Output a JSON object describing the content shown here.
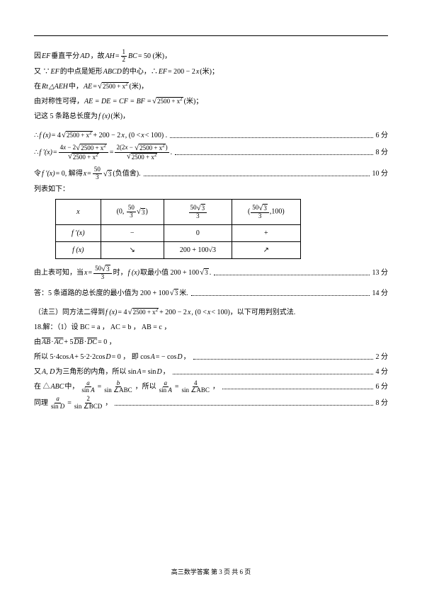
{
  "lines": {
    "l1_a": "因 ",
    "l1_ef": "EF",
    "l1_b": " 垂直平分 ",
    "l1_ad": "AD",
    "l1_c": "，故 ",
    "l1_ah": "AH",
    "l1_eq1": " = ",
    "l1_frac_n": "1",
    "l1_frac_d": "2",
    "l1_bc": "BC",
    "l1_d": " = 50 (米)，",
    "l2_a": "又 ∵ ",
    "l2_ef": "EF",
    "l2_b": " 的中点是矩形 ",
    "l2_abcd": "ABCD",
    "l2_c": " 的中心，∴ ",
    "l2_ef2": "EF",
    "l2_d": " = 200 − 2",
    "l2_x": "x",
    "l2_e": " (米)；",
    "l3_a": "在 ",
    "l3_rt": "Rt",
    "l3_tri": "△AEH",
    "l3_b": " 中，  ",
    "l3_ae": "AE",
    "l3_eq": " = ",
    "l3_sqrt": "2500 + x",
    "l3_c": " (米)，",
    "l4_a": "由对称性可得，",
    "l4_eq": "AE = DE = CF = BF = ",
    "l4_sqrt": "2500 + x",
    "l4_b": " (米)；",
    "l5_a": "记这 5 条路总长度为 ",
    "l5_fx": "f (x)",
    "l5_b": " (米)，",
    "l6_a": "∴ ",
    "l6_fx": "f (x)",
    "l6_b": " = 4",
    "l6_sqrt": "2500 + x",
    "l6_c": " + 200 − 2",
    "l6_x": "x",
    "l6_d": ", (0 < ",
    "l6_x2": "x",
    "l6_e": " < 100) .",
    "s6": "6 分",
    "l7_a": "∴ ",
    "l7_fpx": "f ′(x)",
    "l7_eq": " = ",
    "l7_f1n_a": "4",
    "l7_f1n_x": "x",
    "l7_f1n_b": " − 2",
    "l7_sqrt1": "2500 + x",
    "l7_f1d": "2500 + x",
    "l7_eq2": " = ",
    "l7_f2n_a": "2(2",
    "l7_f2n_x": "x",
    "l7_f2n_b": " − ",
    "l7_sqrt2": "2500 + x",
    "l7_f2n_c": ")",
    "l7_f2d": "2500 + x",
    "l7_period": " .",
    "s8": "8 分",
    "l8_a": "令 ",
    "l8_fpx": "f ′(x)",
    "l8_b": " = 0, 解得 ",
    "l8_x": "x",
    "l8_c": " = ",
    "l8_fn": "50",
    "l8_fd": "3",
    "l8_sqrt3": "3",
    "l8_d": " (负值舍).",
    "s10": "10 分",
    "l9": "列表如下：",
    "tab": {
      "r1": [
        "x",
        [
          "(0, ",
          "50",
          "3",
          "3",
          ")"
        ],
        [
          "",
          "50",
          "3",
          "3",
          ""
        ],
        [
          "(",
          "50",
          "3",
          "3",
          ",100)"
        ]
      ],
      "r2": [
        "f ′(x)",
        "−",
        "0",
        "+"
      ],
      "r3": [
        "f (x)",
        "↘",
        "200 + 100√3",
        "↗"
      ]
    },
    "l10_a": "由上表可知，当 ",
    "l10_x": "x",
    "l10_b": " = ",
    "l10_fn": "50",
    "l10_fd": "3",
    "l10_sqrt": "3",
    "l10_c": " 时， ",
    "l10_fx": "f (x)",
    "l10_d": " 取最小值 200 + 100",
    "l10_sqrt2": "3",
    "l10_e": " .",
    "s13": "13 分",
    "l11_a": "答：5 条道路的总长度的最小值为 200 + 100",
    "l11_sqrt": "3",
    "l11_b": " 米.",
    "s14": "14 分",
    "l12_a": "（法三）同方法二得到 ",
    "l12_fx": "f (x)",
    "l12_b": " = 4",
    "l12_sqrt": "2500 + x",
    "l12_c": " + 200 − 2",
    "l12_x": "x",
    "l12_d": ", (0 < ",
    "l12_x2": "x",
    "l12_e": " < 100)，以下可用判别式法.",
    "l13": "18.解：（1）设 BC = a ， AC = b ， AB = c ，",
    "l14_a": "由 ",
    "l14_v1": "AB",
    "l14_dot": " · ",
    "l14_v2": "AC",
    "l14_b": " + 5",
    "l14_v3": "DB",
    "l14_dot2": " · ",
    "l14_v4": "DC",
    "l14_c": " = 0 ，",
    "l15_a": "所以 5·4cos",
    "l15_A": "A",
    "l15_b": " + 5·2·2cos",
    "l15_D": "D",
    "l15_c": " = 0 ， 即 cos",
    "l15_A2": "A",
    "l15_d": " = − cos",
    "l15_D2": "D",
    "l15_e": " ，",
    "s2": "2 分",
    "l16_a": "又 ",
    "l16_AD": "A, D",
    "l16_b": " 为三角形的内角，所以 sin ",
    "l16_A": "A",
    "l16_c": " = sin ",
    "l16_D": "D",
    "l16_d": " ，",
    "s4": "4 分",
    "l17_a": "在 △",
    "l17_ABC": "ABC",
    "l17_b": " 中，",
    "l17_f1n": "a",
    "l17_f1d_a": "sin ",
    "l17_f1d_b": "A",
    "l17_eq": " = ",
    "l17_f2n": "b",
    "l17_f2d": "sin ∠ABC",
    "l17_c": " ，所以 ",
    "l17_f3n": "a",
    "l17_f3d_a": "sin ",
    "l17_f3d_b": "A",
    "l17_eq2": " = ",
    "l17_f4n": "4",
    "l17_f4d": "sin ∠ABC",
    "l17_d": " ，",
    "s6b": "6 分",
    "l18_a": "同理 ",
    "l18_f1n": "a",
    "l18_f1d_a": "sin ",
    "l18_f1d_b": "D",
    "l18_eq": " = ",
    "l18_f2n": "2",
    "l18_f2d": "sin ∠BCD",
    "l18_b": " ，",
    "s8b": "8 分"
  },
  "footer": "高三数学答案  第 3 页  共 6 页"
}
